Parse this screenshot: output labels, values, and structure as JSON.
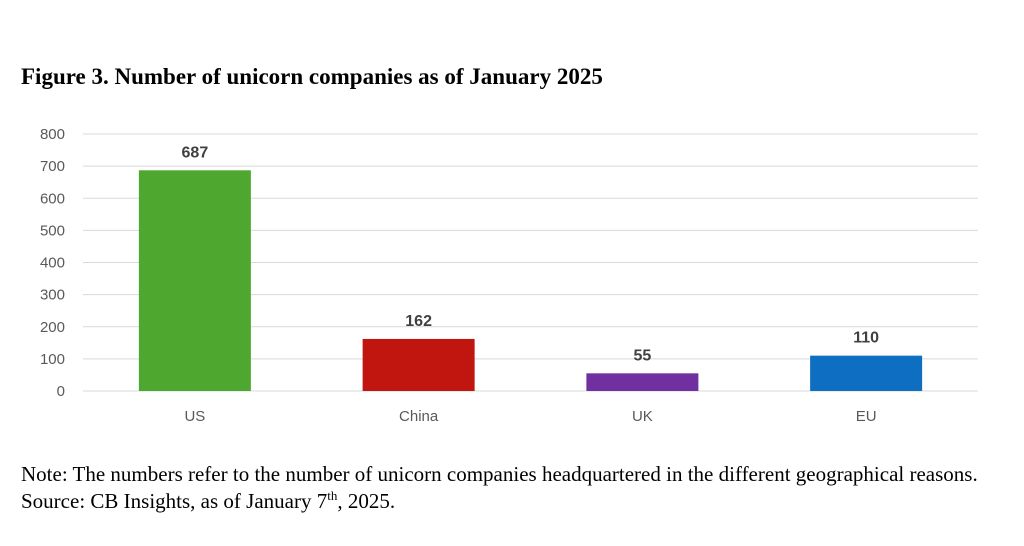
{
  "chart_data": {
    "type": "bar",
    "title": "Figure 3. Number of unicorn companies as of January 2025",
    "categories": [
      "US",
      "China",
      "UK",
      "EU"
    ],
    "values": [
      687,
      162,
      55,
      110
    ],
    "colors": [
      "#4EA72E",
      "#C0160F",
      "#7030A0",
      "#0E6FC2"
    ],
    "ylim": [
      0,
      800
    ],
    "yticks": [
      0,
      100,
      200,
      300,
      400,
      500,
      600,
      700,
      800
    ],
    "grid": true,
    "data_labels": true,
    "xlabel": "",
    "ylabel": ""
  },
  "note": {
    "text": "Note: The numbers refer to the number of unicorn companies headquartered in the different geographical reasons.",
    "source_prefix": "Source: CB Insights, as of January 7",
    "source_superscript": "th",
    "source_suffix": ", 2025."
  }
}
